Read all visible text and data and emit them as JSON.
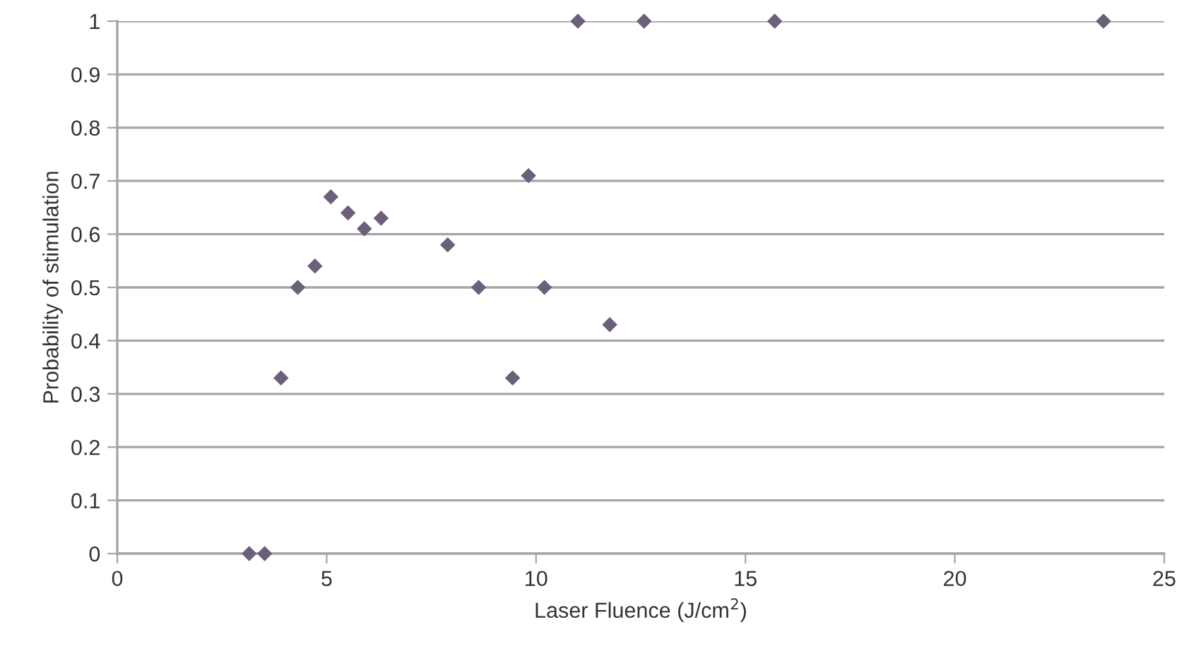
{
  "chart_data": {
    "type": "scatter",
    "xlabel": "Laser Fluence (J/cm$^{2}$)",
    "ylabel": "Probability of stimulation",
    "x": [
      3.15,
      3.52,
      3.91,
      4.31,
      4.72,
      5.1,
      5.51,
      5.9,
      6.3,
      7.89,
      8.63,
      9.44,
      9.82,
      10.2,
      11.0,
      11.76,
      12.58,
      15.7,
      23.55
    ],
    "values": [
      0,
      0,
      0.33,
      0.5,
      0.54,
      0.67,
      0.64,
      0.61,
      0.63,
      0.58,
      0.5,
      0.33,
      0.71,
      0.5,
      1,
      0.43,
      1,
      1,
      1
    ],
    "color": "#6b5f7a",
    "marker": "diamond",
    "xlim": [
      0,
      25
    ],
    "xticks": [
      0,
      5,
      10,
      15,
      20,
      25
    ],
    "ylim": [
      0,
      1
    ],
    "yticks": [
      0,
      0.1,
      0.2,
      0.3,
      0.4,
      0.5,
      0.6,
      0.7,
      0.8,
      0.9,
      1
    ],
    "grid": "y",
    "legend": false
  }
}
